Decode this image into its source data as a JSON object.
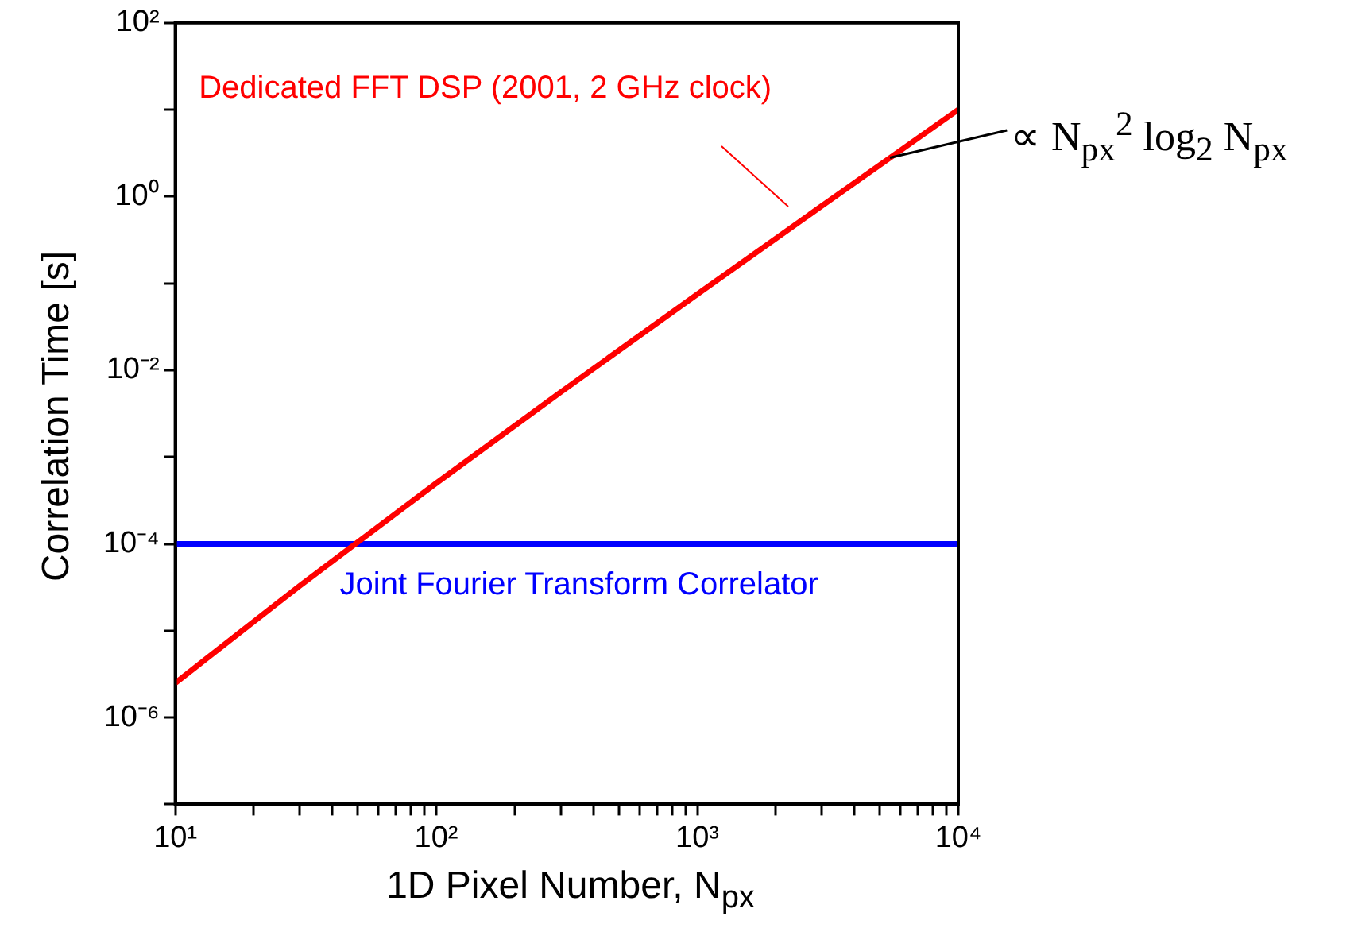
{
  "chart_data": {
    "type": "line",
    "xlabel": "1D Pixel Number, N$_{px}$",
    "ylabel": "Correlation Time [s]",
    "log": "xy",
    "grid": false,
    "legend": false,
    "marker": "none",
    "line_style": "solid",
    "xlim": [
      10,
      10000
    ],
    "xticks": [
      {
        "value": 10,
        "label": "10¹"
      },
      {
        "value": 20,
        "label": null
      },
      {
        "value": 30,
        "label": null
      },
      {
        "value": 40,
        "label": null
      },
      {
        "value": 50,
        "label": null
      },
      {
        "value": 60,
        "label": null
      },
      {
        "value": 70,
        "label": null
      },
      {
        "value": 80,
        "label": null
      },
      {
        "value": 90,
        "label": null
      },
      {
        "value": 100,
        "label": "10²"
      },
      {
        "value": 200,
        "label": null
      },
      {
        "value": 300,
        "label": null
      },
      {
        "value": 400,
        "label": null
      },
      {
        "value": 500,
        "label": null
      },
      {
        "value": 600,
        "label": null
      },
      {
        "value": 700,
        "label": null
      },
      {
        "value": 800,
        "label": null
      },
      {
        "value": 900,
        "label": null
      },
      {
        "value": 1000,
        "label": "10³"
      },
      {
        "value": 2000,
        "label": null
      },
      {
        "value": 3000,
        "label": null
      },
      {
        "value": 4000,
        "label": null
      },
      {
        "value": 5000,
        "label": null
      },
      {
        "value": 6000,
        "label": null
      },
      {
        "value": 7000,
        "label": null
      },
      {
        "value": 8000,
        "label": null
      },
      {
        "value": 9000,
        "label": null
      },
      {
        "value": 10000,
        "label": "10⁴"
      }
    ],
    "ylim": [
      1e-07,
      100
    ],
    "yticks": [
      {
        "value": 1e-07,
        "label": null
      },
      {
        "value": 1e-06,
        "label": "10⁻⁶"
      },
      {
        "value": 1e-05,
        "label": null
      },
      {
        "value": 0.0001,
        "label": "10⁻⁴"
      },
      {
        "value": 0.001,
        "label": null
      },
      {
        "value": 0.01,
        "label": "10⁻²"
      },
      {
        "value": 0.1,
        "label": null
      },
      {
        "value": 1,
        "label": "10⁰"
      },
      {
        "value": 10,
        "label": null
      },
      {
        "value": 100,
        "label": "10²"
      }
    ],
    "series": [
      {
        "name": "Dedicated FFT DSP (2001, 2 GHz clock)",
        "color": "#ff0000",
        "x": [
          10,
          30,
          100,
          300,
          1000,
          3000,
          10000
        ],
        "values": [
          2.5e-06,
          3.3e-05,
          0.0005,
          0.0056,
          0.075,
          0.78,
          10
        ]
      },
      {
        "name": "Joint Fourier Transform Correlator",
        "color": "#0000ff",
        "x": [
          10,
          10000
        ],
        "values": [
          0.0001,
          0.0001
        ]
      }
    ],
    "annotations": [
      {
        "text": "∝ N$_{px}$$^{2}$ log$_{2}$ N$_{px}$",
        "x": 5500,
        "y": 2.8
      }
    ]
  }
}
